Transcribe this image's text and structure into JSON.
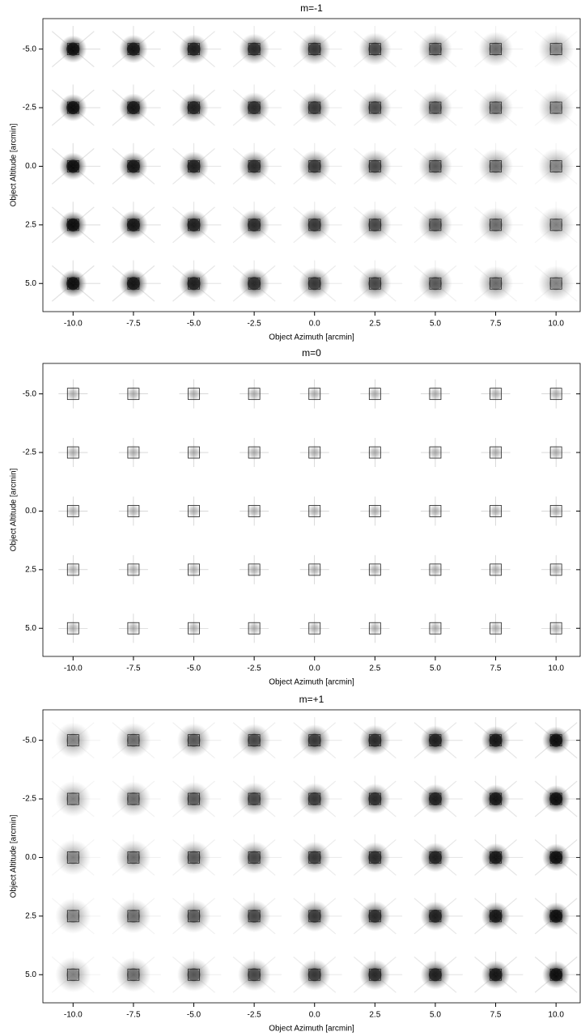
{
  "chart_data": [
    {
      "type": "psf-grid",
      "title": "m=-1",
      "xlabel": "Object Azimuth [arcmin]",
      "ylabel": "Object Altitude [arcmin]",
      "xlim": [
        -11.25,
        11.0
      ],
      "ylim": [
        6.2,
        -6.3
      ],
      "darkening": "left",
      "xticks": [
        {
          "value": -10,
          "label": "-10.0"
        },
        {
          "value": -7.5,
          "label": "-7.5"
        },
        {
          "value": -5,
          "label": "-5.0"
        },
        {
          "value": -2.5,
          "label": "-2.5"
        },
        {
          "value": 0,
          "label": "0.0"
        },
        2.5,
        {
          "value": 5,
          "label": "5.0"
        },
        7.5,
        {
          "value": 10,
          "label": "10.0"
        }
      ],
      "yticks": [
        {
          "value": -5,
          "label": "-5.0"
        },
        {
          "value": -2.5,
          "label": "-2.5"
        },
        {
          "value": 0,
          "label": "0.0"
        },
        2.5,
        {
          "value": 5,
          "label": "5.0"
        }
      ]
    },
    {
      "type": "psf-grid",
      "title": "m=0",
      "xlabel": "Object Azimuth [arcmin]",
      "ylabel": "Object Altitude [arcmin]",
      "xlim": [
        -11.25,
        11.0
      ],
      "ylim": [
        6.2,
        -6.3
      ],
      "darkening": "none",
      "xticks": [
        {
          "value": -10,
          "label": "-10.0"
        },
        {
          "value": -7.5,
          "label": "-7.5"
        },
        {
          "value": -5,
          "label": "-5.0"
        },
        {
          "value": -2.5,
          "label": "-2.5"
        },
        {
          "value": 0,
          "label": "0.0"
        },
        2.5,
        {
          "value": 5,
          "label": "5.0"
        },
        7.5,
        {
          "value": 10,
          "label": "10.0"
        }
      ],
      "yticks": [
        {
          "value": -5,
          "label": "-5.0"
        },
        {
          "value": -2.5,
          "label": "-2.5"
        },
        {
          "value": 0,
          "label": "0.0"
        },
        2.5,
        {
          "value": 5,
          "label": "5.0"
        }
      ]
    },
    {
      "type": "psf-grid",
      "title": "m=+1",
      "xlabel": "Object Azimuth [arcmin]",
      "ylabel": "Object Altitude [arcmin]",
      "xlim": [
        -11.25,
        11.0
      ],
      "ylim": [
        6.2,
        -6.3
      ],
      "darkening": "right",
      "xticks": [
        {
          "value": -10,
          "label": "-10.0"
        },
        {
          "value": -7.5,
          "label": "-7.5"
        },
        {
          "value": -5,
          "label": "-5.0"
        },
        {
          "value": -2.5,
          "label": "-2.5"
        },
        {
          "value": 0,
          "label": "0.0"
        },
        2.5,
        {
          "value": 5,
          "label": "5.0"
        },
        7.5,
        {
          "value": 10,
          "label": "10.0"
        }
      ],
      "yticks": [
        {
          "value": -5,
          "label": "-5.0"
        },
        {
          "value": -2.5,
          "label": "-2.5"
        },
        {
          "value": 0,
          "label": "0.0"
        },
        2.5,
        {
          "value": 5,
          "label": "5.0"
        }
      ]
    }
  ]
}
